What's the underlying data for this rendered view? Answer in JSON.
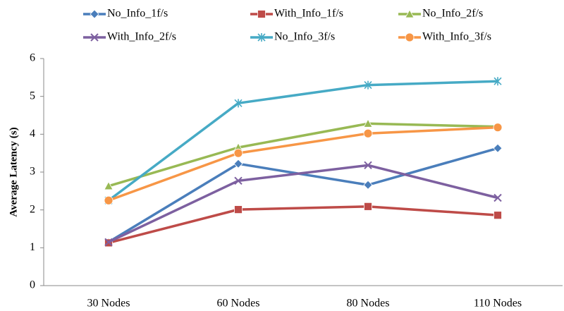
{
  "chart_data": {
    "type": "line",
    "y_label": "Average Latency (s)",
    "categories": [
      "30 Nodes",
      "60 Nodes",
      "80 Nodes",
      "110 Nodes"
    ],
    "series": [
      {
        "name": "No_Info_1f/s",
        "color": "#4a7ebb",
        "marker": "diamond",
        "values": [
          1.15,
          3.22,
          2.66,
          3.63
        ]
      },
      {
        "name": "With_Info_1f/s",
        "color": "#be4b48",
        "marker": "square",
        "values": [
          1.13,
          2.01,
          2.09,
          1.86
        ]
      },
      {
        "name": "No_Info_2f/s",
        "color": "#98b954",
        "marker": "triangle",
        "values": [
          2.63,
          3.65,
          4.28,
          4.2
        ]
      },
      {
        "name": "With_Info_2f/s",
        "color": "#7d60a0",
        "marker": "x",
        "values": [
          1.15,
          2.77,
          3.18,
          2.32
        ]
      },
      {
        "name": "No_Info_3f/s",
        "color": "#46aac5",
        "marker": "star",
        "values": [
          2.25,
          4.82,
          5.3,
          5.4
        ]
      },
      {
        "name": "With_Info_3f/s",
        "color": "#f79646",
        "marker": "circle",
        "values": [
          2.25,
          3.5,
          4.02,
          4.18
        ]
      }
    ],
    "ylim": [
      0,
      6
    ],
    "yticks": [
      0,
      1,
      2,
      3,
      4,
      5,
      6
    ],
    "grid": false,
    "legend": "top"
  }
}
